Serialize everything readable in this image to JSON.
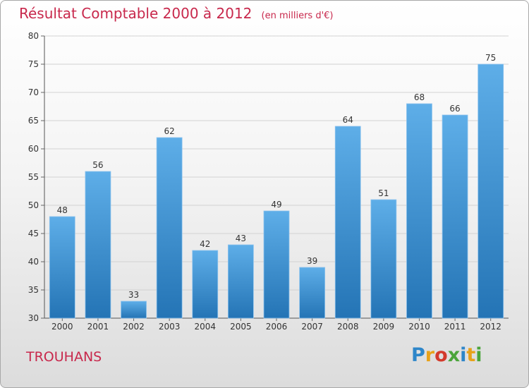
{
  "chart_data": {
    "type": "bar",
    "title": "Résultat Comptable 2000 à 2012",
    "subtitle": "(en milliers d'€)",
    "categories": [
      "2000",
      "2001",
      "2002",
      "2003",
      "2004",
      "2005",
      "2006",
      "2007",
      "2008",
      "2009",
      "2010",
      "2011",
      "2012"
    ],
    "values": [
      48,
      56,
      33,
      62,
      42,
      43,
      49,
      39,
      64,
      51,
      68,
      66,
      75
    ],
    "ylim": [
      30,
      80
    ],
    "yticks": [
      30,
      35,
      40,
      45,
      50,
      55,
      60,
      65,
      70,
      75,
      80
    ],
    "grid": true,
    "bar_color": "#3d8fd0"
  },
  "place_name": "TROUHANS",
  "logo": {
    "letters": [
      {
        "ch": "P",
        "color": "#2e86c9"
      },
      {
        "ch": "r",
        "color": "#e8a21a"
      },
      {
        "ch": "o",
        "color": "#d33a2c"
      },
      {
        "ch": "x",
        "color": "#4aa43a"
      },
      {
        "ch": "i",
        "color": "#2e86c9"
      },
      {
        "ch": "t",
        "color": "#e8a21a"
      },
      {
        "ch": "i",
        "color": "#4aa43a"
      }
    ]
  }
}
